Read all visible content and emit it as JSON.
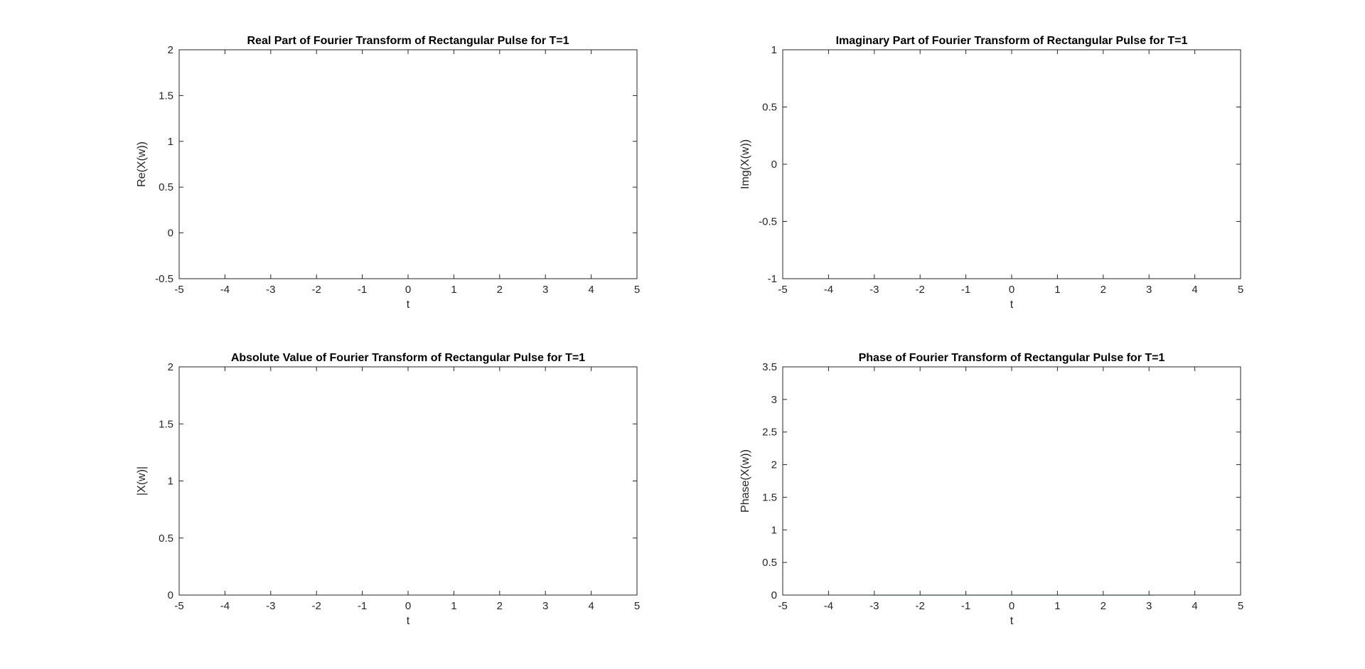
{
  "colors": {
    "series": "#0072bd"
  },
  "chart_data": [
    {
      "type": "line",
      "title": "Real Part of Fourier Transform of Rectangular Pulse for T=1",
      "xlabel": "t",
      "ylabel": "Re(X(w))",
      "xlim": [
        -5,
        5
      ],
      "ylim": [
        -0.5,
        2
      ],
      "xticks": [
        -5,
        -4,
        -3,
        -2,
        -1,
        0,
        1,
        2,
        3,
        4,
        5
      ],
      "yticks": [
        -0.5,
        0,
        0.5,
        1,
        1.5,
        2
      ],
      "xtick_labels": [
        "-5",
        "-4",
        "-3",
        "-2",
        "-1",
        "0",
        "1",
        "2",
        "3",
        "4",
        "5"
      ],
      "ytick_labels": [
        "-0.5",
        "0",
        "0.5",
        "1",
        "1.5",
        "2"
      ],
      "grid": true,
      "series": [
        {
          "name": "Re(X(w))",
          "x": [
            -5,
            -4.75,
            -4.5,
            -4.25,
            -4,
            -3.75,
            -3.5,
            -3.25,
            -3,
            -2.75,
            -2.5,
            -2.25,
            -2,
            -1.75,
            -1.5,
            -1.25,
            -1,
            -0.75,
            -0.5,
            -0.25,
            0,
            0.25,
            0.5,
            0.75,
            1,
            1.25,
            1.5,
            1.75,
            2,
            2.25,
            2.5,
            2.75,
            3,
            3.25,
            3.5,
            3.75,
            4,
            4.25,
            4.5,
            4.75,
            5
          ],
          "y": [
            -0.384,
            -0.42,
            -0.434,
            -0.419,
            -0.378,
            -0.305,
            -0.2,
            -0.067,
            0.094,
            0.278,
            0.479,
            0.691,
            0.909,
            1.126,
            1.33,
            1.519,
            1.683,
            1.818,
            1.918,
            1.979,
            2.0,
            1.979,
            1.918,
            1.818,
            1.683,
            1.519,
            1.33,
            1.126,
            0.909,
            0.691,
            0.479,
            0.278,
            0.094,
            -0.067,
            -0.2,
            -0.305,
            -0.378,
            -0.419,
            -0.434,
            -0.42,
            -0.384
          ]
        }
      ]
    },
    {
      "type": "line",
      "title": "Imaginary Part of Fourier Transform of Rectangular Pulse for T=1",
      "xlabel": "t",
      "ylabel": "Img(X(w))",
      "xlim": [
        -5,
        5
      ],
      "ylim": [
        -1,
        1
      ],
      "xticks": [
        -5,
        -4,
        -3,
        -2,
        -1,
        0,
        1,
        2,
        3,
        4,
        5
      ],
      "yticks": [
        -1,
        -0.5,
        0,
        0.5,
        1
      ],
      "xtick_labels": [
        "-5",
        "-4",
        "-3",
        "-2",
        "-1",
        "0",
        "1",
        "2",
        "3",
        "4",
        "5"
      ],
      "ytick_labels": [
        "-1",
        "-0.5",
        "0",
        "0.5",
        "1"
      ],
      "grid": true,
      "series": [
        {
          "name": "Img(X(w))",
          "x": [
            -5,
            5
          ],
          "y": [
            0,
            0
          ]
        }
      ]
    },
    {
      "type": "line",
      "title": "Absolute Value of Fourier Transform of Rectangular Pulse for T=1",
      "xlabel": "t",
      "ylabel": "|X(w)|",
      "xlim": [
        -5,
        5
      ],
      "ylim": [
        0,
        2
      ],
      "xticks": [
        -5,
        -4,
        -3,
        -2,
        -1,
        0,
        1,
        2,
        3,
        4,
        5
      ],
      "yticks": [
        0,
        0.5,
        1,
        1.5,
        2
      ],
      "xtick_labels": [
        "-5",
        "-4",
        "-3",
        "-2",
        "-1",
        "0",
        "1",
        "2",
        "3",
        "4",
        "5"
      ],
      "ytick_labels": [
        "0",
        "0.5",
        "1",
        "1.5",
        "2"
      ],
      "grid": true,
      "series": [
        {
          "name": "|X(w)|",
          "x": [
            -5,
            -4.75,
            -4.5,
            -4.25,
            -4,
            -3.75,
            -3.5,
            -3.25,
            -3.2,
            -3.1,
            -3,
            -2.75,
            -2.5,
            -2.25,
            -2,
            -1.75,
            -1.5,
            -1.25,
            -1,
            -0.75,
            -0.5,
            -0.25,
            0,
            0.25,
            0.5,
            0.75,
            1,
            1.25,
            1.5,
            1.75,
            2,
            2.25,
            2.5,
            2.75,
            3,
            3.1,
            3.2,
            3.25,
            3.5,
            3.75,
            4,
            4.25,
            4.5,
            4.75,
            5
          ],
          "y": [
            0.384,
            0.42,
            0.434,
            0.419,
            0.378,
            0.305,
            0.2,
            0.067,
            0.036,
            0.026,
            0.094,
            0.278,
            0.479,
            0.691,
            0.909,
            1.126,
            1.33,
            1.519,
            1.683,
            1.818,
            1.918,
            1.979,
            2.0,
            1.979,
            1.918,
            1.818,
            1.683,
            1.519,
            1.33,
            1.126,
            0.909,
            0.691,
            0.479,
            0.278,
            0.094,
            0.026,
            0.036,
            0.067,
            0.2,
            0.305,
            0.378,
            0.419,
            0.434,
            0.42,
            0.384
          ]
        }
      ]
    },
    {
      "type": "line",
      "title": "Phase of Fourier Transform of Rectangular Pulse for T=1",
      "xlabel": "t",
      "ylabel": "Phase(X(w))",
      "xlim": [
        -5,
        5
      ],
      "ylim": [
        0,
        3.5
      ],
      "xticks": [
        -5,
        -4,
        -3,
        -2,
        -1,
        0,
        1,
        2,
        3,
        4,
        5
      ],
      "yticks": [
        0,
        0.5,
        1,
        1.5,
        2,
        2.5,
        3,
        3.5
      ],
      "xtick_labels": [
        "-5",
        "-4",
        "-3",
        "-2",
        "-1",
        "0",
        "1",
        "2",
        "3",
        "4",
        "5"
      ],
      "ytick_labels": [
        "0",
        "0.5",
        "1",
        "1.5",
        "2",
        "2.5",
        "3",
        "3.5"
      ],
      "grid": true,
      "series": [
        {
          "name": "Phase(X(w))",
          "x": [
            -5,
            -3.2,
            -3.1,
            3.1,
            3.2,
            5
          ],
          "y": [
            3.1416,
            3.1416,
            0,
            0,
            3.1416,
            3.1416
          ]
        }
      ]
    }
  ]
}
